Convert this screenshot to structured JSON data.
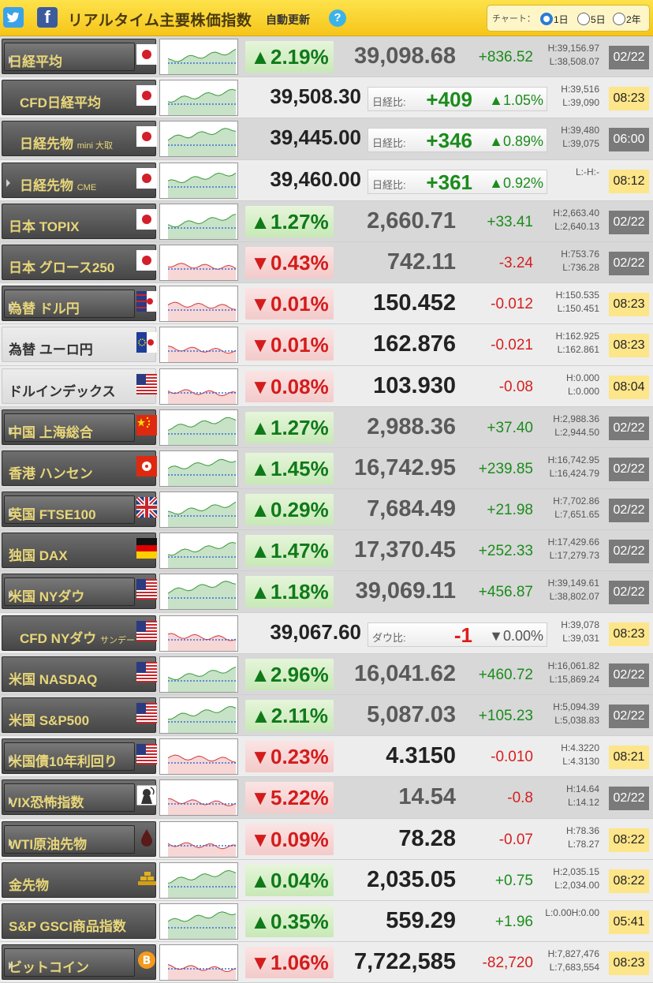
{
  "header": {
    "title": "リアルタイム主要株価指数",
    "auto_update": "自動更新",
    "help": "?",
    "chart_label": "チャート：",
    "chart_options": [
      "1日",
      "5日",
      "2年"
    ],
    "chart_selected": "1日",
    "twitter_icon": "twitter-icon",
    "facebook_icon": "facebook-icon"
  },
  "colors": {
    "up": "#0f7a19",
    "down": "#d41c1c",
    "header": "#f6c51a",
    "time_badge": "#fde58a",
    "date_badge": "#7a7a7a"
  },
  "compare_labels": {
    "nikkei": "日経比:",
    "dow": "ダウ比:"
  },
  "rows": [
    {
      "type": "idx",
      "name": "日経平均",
      "suffix": "",
      "button": true,
      "flag": "jp",
      "pct": "▲2.19%",
      "dir": "up",
      "price": "39,098.68",
      "chg": "+836.52",
      "high": "H:39,156.97",
      "low": "L:38,508.07",
      "dt": "02/22",
      "dtype": "date",
      "gray": true
    },
    {
      "type": "cfd",
      "name": "CFD日経平均",
      "suffix": "",
      "flag": "jp",
      "price": "39,508.30",
      "cmp_label": "日経比:",
      "cmp": "+409",
      "cmp_dir": "up",
      "cmp_pct": "▲1.05%",
      "high": "H:39,516",
      "low": "L:39,090",
      "dt": "08:23",
      "dtype": "time"
    },
    {
      "type": "cfd",
      "name": "日経先物",
      "suffix": "mini 大取",
      "flag": "jp",
      "price": "39,445.00",
      "cmp_label": "日経比:",
      "cmp": "+346",
      "cmp_dir": "up",
      "cmp_pct": "▲0.89%",
      "high": "H:39,480",
      "low": "L:39,075",
      "dt": "06:00",
      "dtype": "gray",
      "gray": true
    },
    {
      "type": "cfd",
      "name": "日経先物",
      "suffix": "CME",
      "flag": "jp",
      "price": "39,460.00",
      "cmp_label": "日経比:",
      "cmp": "+361",
      "cmp_dir": "up",
      "cmp_pct": "▲0.92%",
      "high": "L:-H:-",
      "low": "",
      "dt": "08:12",
      "dtype": "time",
      "arrow": true
    },
    {
      "type": "idx",
      "name": "日本 TOPIX",
      "suffix": "",
      "flag": "jp",
      "pct": "▲1.27%",
      "dir": "up",
      "price": "2,660.71",
      "chg": "+33.41",
      "high": "H:2,663.40",
      "low": "L:2,640.13",
      "dt": "02/22",
      "dtype": "date",
      "gray": true
    },
    {
      "type": "idx",
      "name": "日本 グロース250",
      "suffix": "",
      "flag": "jp",
      "pct": "▼0.43%",
      "dir": "dn",
      "price": "742.11",
      "chg": "-3.24",
      "high": "H:753.76",
      "low": "L:736.28",
      "dt": "02/22",
      "dtype": "date",
      "gray": true
    },
    {
      "type": "idx",
      "name": "為替 ドル円",
      "suffix": "",
      "button": true,
      "flag": "usjp",
      "pct": "▼0.01%",
      "dir": "dn",
      "price": "150.452",
      "chg": "-0.012",
      "high": "H:150.535",
      "low": "L:150.451",
      "dt": "08:23",
      "dtype": "time"
    },
    {
      "type": "idx",
      "name": "為替 ユーロ円",
      "suffix": "",
      "flat": true,
      "flag": "eujp",
      "pct": "▼0.01%",
      "dir": "dn",
      "price": "162.876",
      "chg": "-0.021",
      "high": "H:162.925",
      "low": "L:162.861",
      "dt": "08:23",
      "dtype": "time"
    },
    {
      "type": "idx",
      "name": "ドルインデックス",
      "suffix": "",
      "flat": true,
      "flag": "us",
      "pct": "▼0.08%",
      "dir": "dn",
      "price": "103.930",
      "chg": "-0.08",
      "high": "H:0.000",
      "low": "L:0.000",
      "dt": "08:04",
      "dtype": "time"
    },
    {
      "type": "idx",
      "name": "中国 上海総合",
      "suffix": "",
      "button": true,
      "flag": "cn",
      "pct": "▲1.27%",
      "dir": "up",
      "price": "2,988.36",
      "chg": "+37.40",
      "high": "H:2,988.36",
      "low": "L:2,944.50",
      "dt": "02/22",
      "dtype": "date",
      "gray": true
    },
    {
      "type": "idx",
      "name": "香港 ハンセン",
      "suffix": "",
      "flag": "hk",
      "pct": "▲1.45%",
      "dir": "up",
      "price": "16,742.95",
      "chg": "+239.85",
      "high": "H:16,742.95",
      "low": "L:16,424.79",
      "dt": "02/22",
      "dtype": "date",
      "gray": true
    },
    {
      "type": "idx",
      "name": "英国 FTSE100",
      "suffix": "",
      "button": true,
      "flag": "uk",
      "pct": "▲0.29%",
      "dir": "up",
      "price": "7,684.49",
      "chg": "+21.98",
      "high": "H:7,702.86",
      "low": "L:7,651.65",
      "dt": "02/22",
      "dtype": "date",
      "gray": true
    },
    {
      "type": "idx",
      "name": "独国 DAX",
      "suffix": "",
      "flag": "de",
      "pct": "▲1.47%",
      "dir": "up",
      "price": "17,370.45",
      "chg": "+252.33",
      "high": "H:17,429.66",
      "low": "L:17,279.73",
      "dt": "02/22",
      "dtype": "date",
      "gray": true
    },
    {
      "type": "idx",
      "name": "米国 NYダウ",
      "suffix": "",
      "button": true,
      "flag": "us",
      "pct": "▲1.18%",
      "dir": "up",
      "price": "39,069.11",
      "chg": "+456.87",
      "high": "H:39,149.61",
      "low": "L:38,802.07",
      "dt": "02/22",
      "dtype": "date",
      "gray": true
    },
    {
      "type": "cfd",
      "name": "CFD NYダウ",
      "suffix": "サンデー",
      "flag": "us",
      "price": "39,067.60",
      "cmp_label": "ダウ比:",
      "cmp": "-1",
      "cmp_dir": "dn",
      "cmp_pct": "▼0.00%",
      "high": "H:39,078",
      "low": "L:39,031",
      "dt": "08:23",
      "dtype": "time"
    },
    {
      "type": "idx",
      "name": "米国 NASDAQ",
      "suffix": "",
      "flag": "us",
      "pct": "▲2.96%",
      "dir": "up",
      "price": "16,041.62",
      "chg": "+460.72",
      "high": "H:16,061.82",
      "low": "L:15,869.24",
      "dt": "02/22",
      "dtype": "date",
      "gray": true
    },
    {
      "type": "idx",
      "name": "米国 S&P500",
      "suffix": "",
      "flag": "us",
      "pct": "▲2.11%",
      "dir": "up",
      "price": "5,087.03",
      "chg": "+105.23",
      "high": "H:5,094.39",
      "low": "L:5,038.83",
      "dt": "02/22",
      "dtype": "date",
      "gray": true
    },
    {
      "type": "idx",
      "name": "米国債10年利回り",
      "suffix": "",
      "button": true,
      "flag": "us",
      "pct": "▼0.23%",
      "dir": "dn",
      "price": "4.3150",
      "chg": "-0.010",
      "high": "H:4.3220",
      "low": "L:4.3130",
      "dt": "08:21",
      "dtype": "time"
    },
    {
      "type": "idx",
      "name": "VIX恐怖指数",
      "suffix": "",
      "button": true,
      "flag": "vix",
      "pct": "▼5.22%",
      "dir": "dn",
      "price": "14.54",
      "chg": "-0.8",
      "high": "H:14.64",
      "low": "L:14.12",
      "dt": "02/22",
      "dtype": "date",
      "gray": true
    },
    {
      "type": "idx",
      "name": "WTI原油先物",
      "suffix": "",
      "button": true,
      "flag": "oil",
      "pct": "▼0.09%",
      "dir": "dn",
      "price": "78.28",
      "chg": "-0.07",
      "high": "H:78.36",
      "low": "L:78.27",
      "dt": "08:22",
      "dtype": "time"
    },
    {
      "type": "idx",
      "name": "金先物",
      "suffix": "",
      "flag": "gold",
      "pct": "▲0.04%",
      "dir": "up",
      "price": "2,035.05",
      "chg": "+0.75",
      "high": "H:2,035.15",
      "low": "L:2,034.00",
      "dt": "08:22",
      "dtype": "time"
    },
    {
      "type": "idx",
      "name": "S&P GSCI商品指数",
      "suffix": "",
      "flag": "none",
      "pct": "▲0.35%",
      "dir": "up",
      "price": "559.29",
      "chg": "+1.96",
      "high": "L:0.00H:0.00",
      "low": "",
      "dt": "05:41",
      "dtype": "time"
    },
    {
      "type": "idx",
      "name": "ビットコイン",
      "suffix": "",
      "button": true,
      "flag": "btc",
      "pct": "▼1.06%",
      "dir": "dn",
      "price": "7,722,585",
      "chg": "-82,720",
      "high": "H:7,827,476",
      "low": "L:7,683,554",
      "dt": "08:23",
      "dtype": "time"
    }
  ]
}
